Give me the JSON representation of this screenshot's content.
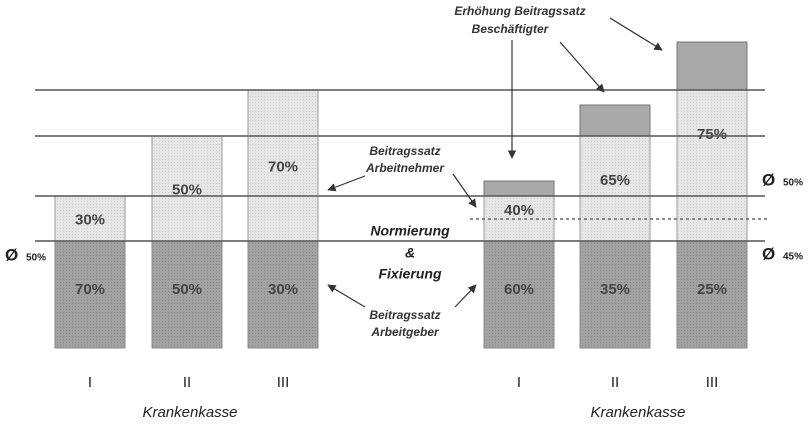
{
  "groups": [
    {
      "label": "Krankenkasse",
      "bars": [
        {
          "numeral": "I",
          "upper": "30%",
          "lower": "70%"
        },
        {
          "numeral": "II",
          "upper": "50%",
          "lower": "50%"
        },
        {
          "numeral": "III",
          "upper": "70%",
          "lower": "30%"
        }
      ]
    },
    {
      "label": "Krankenkasse",
      "bars": [
        {
          "numeral": "I",
          "upper": "40%",
          "lower": "60%"
        },
        {
          "numeral": "II",
          "upper": "65%",
          "lower": "35%"
        },
        {
          "numeral": "III",
          "upper": "75%",
          "lower": "25%"
        }
      ]
    }
  ],
  "center": [
    "Normierung",
    "&",
    "Fixierung"
  ],
  "annotations": {
    "employee": [
      "Beitragssatz",
      "Arbeitnehmer"
    ],
    "employer": [
      "Beitragssatz",
      "Arbeitgeber"
    ],
    "increase": [
      "Erhöhung Beitragssatz",
      "Beschäftigter"
    ]
  },
  "averages": {
    "left": {
      "symbol": "Ø",
      "value": "50%"
    },
    "right_top": {
      "symbol": "Ø",
      "value": "50%"
    },
    "right_bottom": {
      "symbol": "Ø",
      "value": "45%"
    }
  }
}
